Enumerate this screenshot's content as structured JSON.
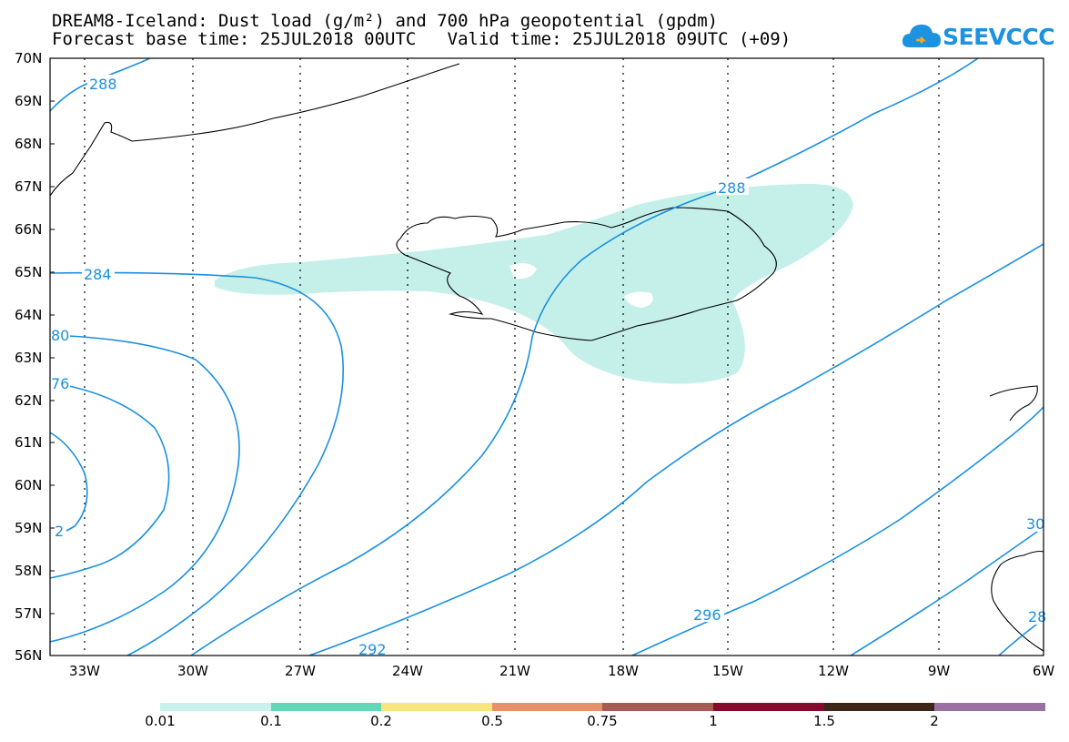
{
  "header": {
    "title_line1": "DREAM8-Iceland: Dust load (g/m²) and 700 hPa geopotential (gpdm)",
    "title_line2": "Forecast base time: 25JUL2018 00UTC   Valid time: 25JUL2018 09UTC (+09)"
  },
  "logo": {
    "text": "SEEVCCC",
    "icon": "cloud-icon",
    "color": "#1d92e0"
  },
  "map": {
    "lat_labels": [
      "70N",
      "69N",
      "68N",
      "67N",
      "66N",
      "65N",
      "64N",
      "63N",
      "62N",
      "61N",
      "60N",
      "59N",
      "58N",
      "57N",
      "56N"
    ],
    "lon_labels": [
      "33W",
      "30W",
      "27W",
      "24W",
      "21W",
      "18W",
      "15W",
      "12W",
      "9W",
      "6W"
    ],
    "contour_color": "#1a90e0",
    "dust_color": "#c5f0ea",
    "contour_labels": [
      "288",
      "288",
      "284",
      "80",
      "76",
      "2",
      "292",
      "296",
      "30",
      "28"
    ]
  },
  "colorbar": {
    "colors": [
      "#c8f2ec",
      "#5fd9b6",
      "#f7e77a",
      "#e9906a",
      "#a85b52",
      "#880a2e",
      "#3b2618",
      "#9a6fa3"
    ],
    "labels": [
      "0.01",
      "0.1",
      "0.2",
      "0.5",
      "0.75",
      "1",
      "1.5",
      "2"
    ]
  }
}
